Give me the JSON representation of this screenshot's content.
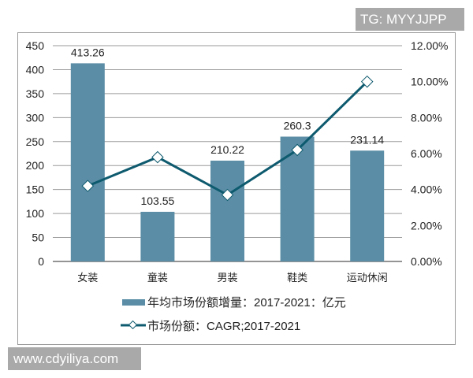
{
  "watermarks": {
    "top": "TG: MYYJJPP",
    "bottom": "www.cdyiliya.com"
  },
  "colors": {
    "bar": "#5b8ea6",
    "line": "#0e5a6e",
    "grid": "#9a9a9a",
    "marker_fill": "#ffffff"
  },
  "chart_data": {
    "type": "bar",
    "categories": [
      "女装",
      "童装",
      "男装",
      "鞋类",
      "运动休闲"
    ],
    "series": [
      {
        "name": "年均市场份额增量：2017-2021：亿元",
        "type": "bar",
        "axis": "left",
        "values": [
          413.26,
          103.55,
          210.22,
          260.3,
          231.14
        ],
        "labels": [
          "413.26",
          "103.55",
          "210.22",
          "260.3",
          "231.14"
        ]
      },
      {
        "name": "市场份额：CAGR;2017-2021",
        "type": "line",
        "axis": "right",
        "values": [
          4.2,
          5.8,
          3.7,
          6.2,
          10.0
        ],
        "unit": "%"
      }
    ],
    "left_axis": {
      "ylim": [
        0,
        450
      ],
      "ticks": [
        "0",
        "50",
        "100",
        "150",
        "200",
        "250",
        "300",
        "350",
        "400",
        "450"
      ]
    },
    "right_axis": {
      "ylim": [
        0,
        12
      ],
      "ticks": [
        "0.00%",
        "2.00%",
        "4.00%",
        "6.00%",
        "8.00%",
        "10.00%",
        "12.00%"
      ]
    },
    "title": "",
    "xlabel": "",
    "ylabel": "",
    "grid": true,
    "legend_position": "bottom"
  }
}
